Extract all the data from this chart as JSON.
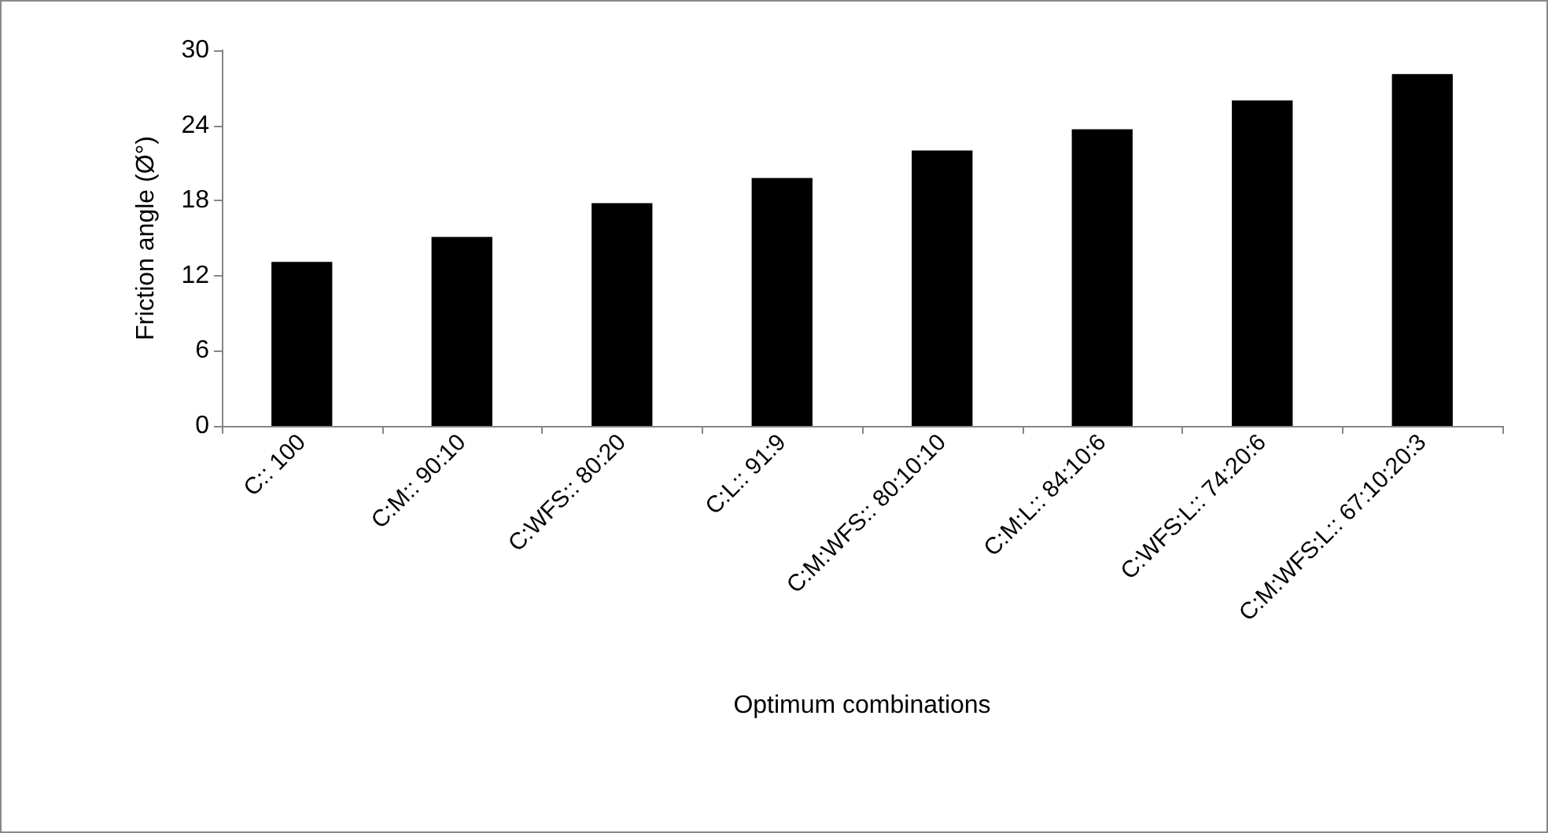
{
  "chart_data": {
    "type": "bar",
    "xlabel": "Optimum combinations",
    "ylabel": "Friction angle (Ø°)",
    "categories": [
      "C:: 100",
      "C:M:: 90:10",
      "C:WFS:: 80:20",
      "C:L:: 91:9",
      "C:M:WFS:: 80:10:10",
      "C:M:L:: 84:10:6",
      "C:WFS:L:: 74:20:6",
      "C:M:WFS:L:: 67:10:20:3"
    ],
    "values": [
      13.1,
      15.1,
      17.8,
      19.8,
      22.0,
      23.7,
      26.0,
      28.1
    ],
    "color": "#000000",
    "ylim": [
      0,
      30
    ],
    "yticks": [
      0,
      6,
      12,
      18,
      24,
      30
    ],
    "grid": false
  }
}
